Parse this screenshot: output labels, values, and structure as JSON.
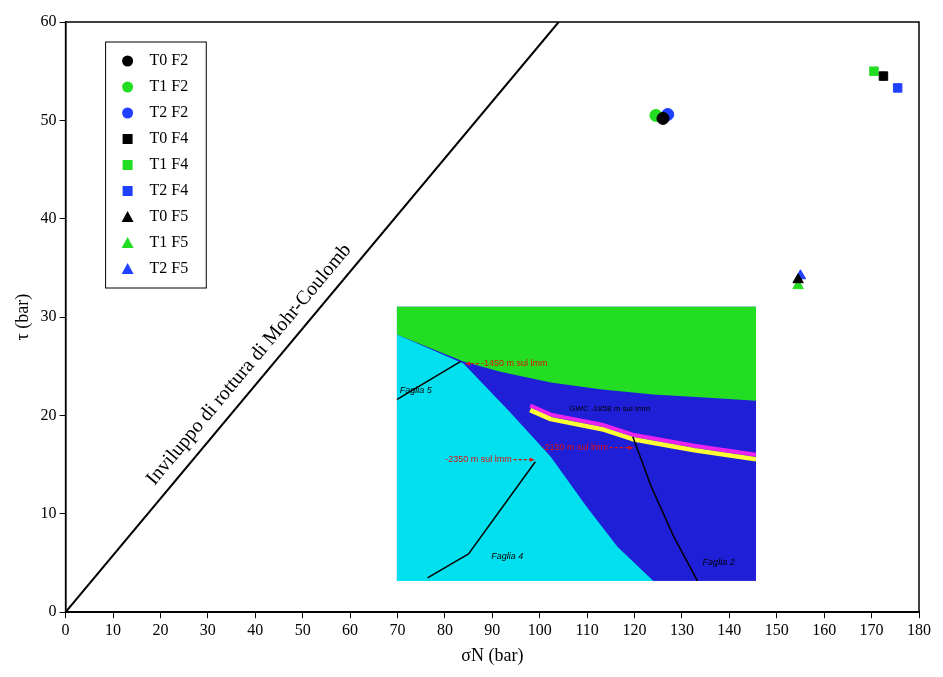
{
  "chart_data": {
    "type": "scatter",
    "x_label": "σN (bar)",
    "y_label": "τ (bar)",
    "xlim": [
      0,
      180
    ],
    "xticks": [
      0,
      10,
      20,
      30,
      40,
      50,
      60,
      70,
      80,
      90,
      100,
      110,
      120,
      130,
      140,
      150,
      160,
      170,
      180
    ],
    "ylim": [
      0,
      60
    ],
    "yticks": [
      0,
      10,
      20,
      30,
      40,
      50,
      60
    ],
    "grid": false,
    "legend": "upper left",
    "series": [
      {
        "name": "T0 F2",
        "color": "#000000",
        "marker": "circle",
        "x": [
          126.0
        ],
        "y": [
          50.2
        ]
      },
      {
        "name": "T1 F2",
        "color": "#22dd22",
        "marker": "circle",
        "x": [
          124.5
        ],
        "y": [
          50.5
        ]
      },
      {
        "name": "T2 F2",
        "color": "#2040ff",
        "marker": "circle",
        "x": [
          127.0
        ],
        "y": [
          50.6
        ]
      },
      {
        "name": "T0 F4",
        "color": "#000000",
        "marker": "square",
        "x": [
          172.5
        ],
        "y": [
          54.5
        ]
      },
      {
        "name": "T1 F4",
        "color": "#22dd22",
        "marker": "square",
        "x": [
          170.5
        ],
        "y": [
          55.0
        ]
      },
      {
        "name": "T2 F4",
        "color": "#2040ff",
        "marker": "square",
        "x": [
          175.5
        ],
        "y": [
          53.3
        ]
      },
      {
        "name": "T0 F5",
        "color": "#000000",
        "marker": "triangle",
        "x": [
          154.5
        ],
        "y": [
          33.8
        ]
      },
      {
        "name": "T1 F5",
        "color": "#22dd22",
        "marker": "triangle",
        "x": [
          154.5
        ],
        "y": [
          33.2
        ]
      },
      {
        "name": "T2 F5",
        "color": "#2040ff",
        "marker": "triangle",
        "x": [
          155.0
        ],
        "y": [
          34.2
        ]
      }
    ],
    "envelope": {
      "x": [
        0,
        104
      ],
      "y": [
        0,
        60
      ],
      "color": "#000000",
      "label": "Inviluppo di rottura di Mohr-Coulomb"
    },
    "inset": {
      "depth_labels": [
        "-1450 m sul lmm",
        "GWC -1858 m sul lmm",
        "-2350 m sul lmm",
        "-2150 m sul lmm"
      ],
      "fault_labels": [
        "Faglia 5",
        "Faglia 4",
        "Faglia 2"
      ]
    }
  }
}
